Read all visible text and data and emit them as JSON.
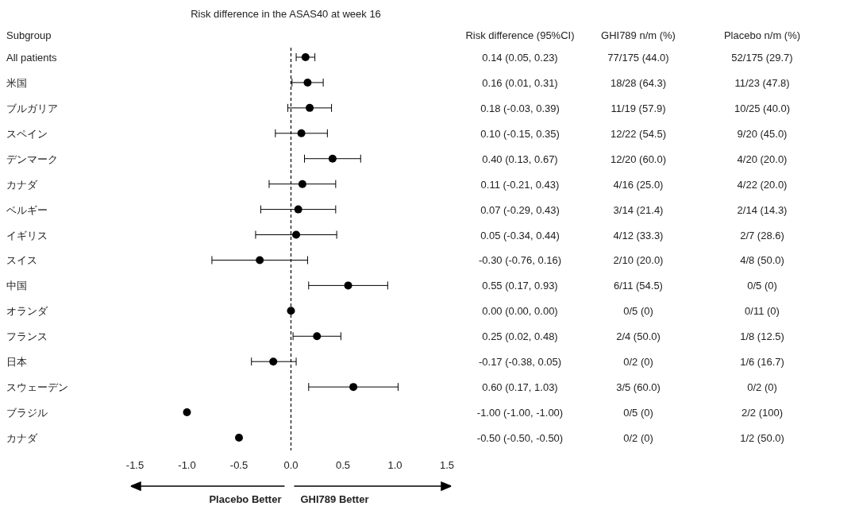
{
  "chart_data": {
    "type": "scatter",
    "orientation": "horizontal",
    "title": "Risk difference in the ASAS40 at week 16",
    "categories": [
      "All patients",
      "米国",
      "ブルガリア",
      "スペイン",
      "デンマーク",
      "カナダ",
      "ベルギー",
      "イギリス",
      "スイス",
      "中国",
      "オランダ",
      "フランス",
      "日本",
      "スウェーデン",
      "ブラジル",
      "カナダ"
    ],
    "values": [
      0.14,
      0.16,
      0.18,
      0.1,
      0.4,
      0.11,
      0.07,
      0.05,
      -0.3,
      0.55,
      0.0,
      0.25,
      -0.17,
      0.6,
      -1.0,
      -0.5
    ],
    "errors": [
      [
        0.05,
        0.23
      ],
      [
        0.01,
        0.31
      ],
      [
        -0.03,
        0.39
      ],
      [
        -0.15,
        0.35
      ],
      [
        0.13,
        0.67
      ],
      [
        -0.21,
        0.43
      ],
      [
        -0.29,
        0.43
      ],
      [
        -0.34,
        0.44
      ],
      [
        -0.76,
        0.16
      ],
      [
        0.17,
        0.93
      ],
      null,
      [
        0.02,
        0.48
      ],
      [
        -0.38,
        0.05
      ],
      [
        0.17,
        1.03
      ],
      null,
      null
    ],
    "value_labels": [
      "0.14 (0.05, 0.23)",
      "0.16 (0.01, 0.31)",
      "0.18 (-0.03, 0.39)",
      "0.10 (-0.15, 0.35)",
      "0.40 (0.13, 0.67)",
      "0.11 (-0.21, 0.43)",
      "0.07 (-0.29, 0.43)",
      "0.05 (-0.34, 0.44)",
      "-0.30 (-0.76, 0.16)",
      "0.55 (0.17, 0.93)",
      "0.00 (0.00, 0.00)",
      "0.25 (0.02, 0.48)",
      "-0.17 (-0.38, 0.05)",
      "0.60 (0.17, 1.03)",
      "-1.00 (-1.00, -1.00)",
      "-0.50 (-0.50, -0.50)"
    ],
    "color": "#000000",
    "marker": "circle",
    "xlim": [
      -1.5,
      1.5
    ],
    "xticks": [
      {
        "value": -1.5,
        "label": "-1.5"
      },
      {
        "value": -1.0,
        "label": "-1.0"
      },
      {
        "value": -0.5,
        "label": "-0.5"
      },
      {
        "value": 0.0,
        "label": "0.0"
      },
      {
        "value": 0.5,
        "label": "0.5"
      },
      {
        "value": 1.0,
        "label": "1.0"
      },
      {
        "value": 1.5,
        "label": "1.5"
      }
    ],
    "ref_lines": [
      {
        "axis": "x",
        "value": 0,
        "line_style": "dashed",
        "color": "#000000"
      }
    ],
    "grid": false,
    "annotations": [
      "Subgroup",
      "Risk difference (95%CI)",
      "GHI789 n/m (%)",
      "Placebo n/m (%)",
      "Placebo Better",
      "GHI789 Better",
      "77/175 (44.0)",
      "52/175 (29.7)",
      "18/28 (64.3)",
      "11/23 (47.8)",
      "11/19 (57.9)",
      "10/25 (40.0)",
      "12/22 (54.5)",
      "9/20 (45.0)",
      "12/20 (60.0)",
      "4/20 (20.0)",
      "4/16 (25.0)",
      "4/22 (20.0)",
      "3/14 (21.4)",
      "2/14 (14.3)",
      "4/12 (33.3)",
      "2/7 (28.6)",
      "2/10 (20.0)",
      "4/8 (50.0)",
      "6/11 (54.5)",
      "0/5 (0)",
      "0/5 (0)",
      "0/11 (0)",
      "2/4 (50.0)",
      "1/8 (12.5)",
      "0/2 (0)",
      "1/6 (16.7)",
      "3/5 (60.0)",
      "0/2 (0)",
      "0/5 (0)",
      "2/2 (100)",
      "0/2 (0)",
      "1/2 (50.0)"
    ]
  }
}
